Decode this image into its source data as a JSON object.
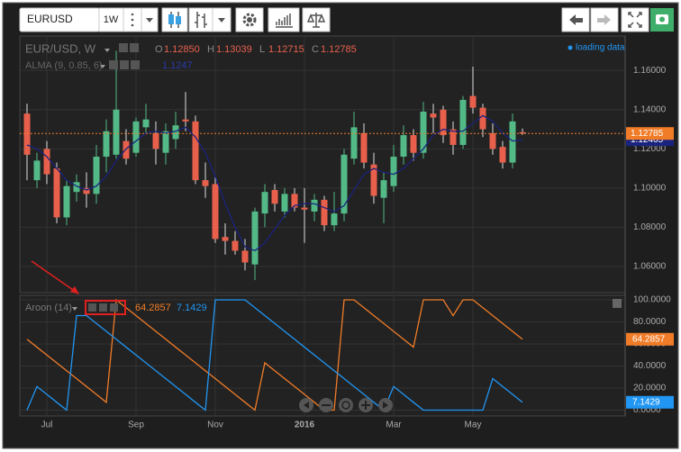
{
  "toolbar": {
    "symbol": "EURUSD",
    "interval": "1W"
  },
  "status": "loading data",
  "chart_data": [
    {
      "type": "candlestick",
      "title": "EUR/USD, W",
      "ohlc_legend": [
        {
          "key": "O",
          "value": "1.12850"
        },
        {
          "key": "H",
          "value": "1.13039"
        },
        {
          "key": "L",
          "value": "1.12715"
        },
        {
          "key": "C",
          "value": "1.12785"
        }
      ],
      "categories": [
        null,
        null,
        "Jul",
        null,
        null,
        null,
        null,
        null,
        null,
        null,
        null,
        "Sep",
        null,
        null,
        null,
        null,
        null,
        null,
        null,
        "Nov",
        null,
        null,
        null,
        null,
        null,
        null,
        null,
        null,
        "2016",
        null,
        null,
        null,
        null,
        null,
        null,
        null,
        null,
        "Mar",
        null,
        null,
        null,
        null,
        null,
        null,
        null,
        "May",
        null,
        null,
        null,
        null,
        null
      ],
      "up_color": "#53b987",
      "down_color": "#e8604c",
      "open": [
        1.138,
        1.104,
        1.12,
        1.11,
        1.085,
        1.098,
        1.1,
        1.097,
        1.116,
        1.117,
        1.124,
        1.118,
        1.131,
        1.128,
        1.118,
        1.125,
        1.135,
        1.134,
        1.104,
        1.102,
        1.075,
        1.073,
        1.068,
        1.061,
        1.087,
        1.099,
        1.088,
        1.097,
        1.09,
        1.088,
        1.094,
        1.081,
        1.087,
        1.115,
        1.128,
        1.112,
        1.095,
        1.101,
        1.116,
        1.127,
        1.118,
        1.138,
        1.14,
        1.13,
        1.122,
        1.147,
        1.141,
        1.128,
        1.121,
        1.113,
        1.1285
      ],
      "high": [
        1.143,
        1.118,
        1.124,
        1.113,
        1.104,
        1.107,
        1.108,
        1.122,
        1.135,
        1.17,
        1.13,
        1.136,
        1.143,
        1.134,
        1.133,
        1.139,
        1.149,
        1.137,
        1.113,
        1.106,
        1.082,
        1.078,
        1.074,
        1.09,
        1.102,
        1.102,
        1.1,
        1.1,
        1.1,
        1.097,
        1.096,
        1.098,
        1.12,
        1.139,
        1.133,
        1.118,
        1.108,
        1.122,
        1.132,
        1.13,
        1.144,
        1.143,
        1.142,
        1.134,
        1.147,
        1.162,
        1.143,
        1.133,
        1.124,
        1.138,
        1.13039
      ],
      "low": [
        1.104,
        1.1,
        1.102,
        1.082,
        1.081,
        1.093,
        1.09,
        1.092,
        1.108,
        1.115,
        1.112,
        1.116,
        1.128,
        1.112,
        1.112,
        1.12,
        1.129,
        1.102,
        1.095,
        1.072,
        1.066,
        1.066,
        1.058,
        1.053,
        1.08,
        1.088,
        1.085,
        1.088,
        1.072,
        1.083,
        1.078,
        1.078,
        1.083,
        1.112,
        1.11,
        1.092,
        1.082,
        1.098,
        1.112,
        1.114,
        1.115,
        1.128,
        1.123,
        1.117,
        1.12,
        1.138,
        1.126,
        1.117,
        1.11,
        1.11,
        1.12715
      ],
      "close": [
        1.117,
        1.114,
        1.107,
        1.085,
        1.101,
        1.103,
        1.097,
        1.116,
        1.129,
        1.14,
        1.115,
        1.134,
        1.135,
        1.12,
        1.129,
        1.132,
        1.134,
        1.104,
        1.101,
        1.074,
        1.073,
        1.068,
        1.062,
        1.088,
        1.098,
        1.092,
        1.097,
        1.09,
        1.089,
        1.094,
        1.081,
        1.087,
        1.117,
        1.131,
        1.113,
        1.096,
        1.104,
        1.116,
        1.127,
        1.118,
        1.139,
        1.136,
        1.127,
        1.122,
        1.145,
        1.141,
        1.13,
        1.12,
        1.113,
        1.134,
        1.12785
      ],
      "overlays": [
        {
          "name": "ALMA (9, 0.85, 6)",
          "color": "#1a237e",
          "value_label": "1.1247",
          "values": [
            1.122,
            1.12,
            1.116,
            1.11,
            1.104,
            1.101,
            1.099,
            1.101,
            1.106,
            1.114,
            1.12,
            1.124,
            1.128,
            1.129,
            1.128,
            1.129,
            1.131,
            1.126,
            1.118,
            1.106,
            1.092,
            1.08,
            1.07,
            1.068,
            1.072,
            1.079,
            1.086,
            1.091,
            1.092,
            1.092,
            1.09,
            1.088,
            1.091,
            1.099,
            1.107,
            1.11,
            1.108,
            1.107,
            1.11,
            1.115,
            1.12,
            1.127,
            1.13,
            1.129,
            1.129,
            1.133,
            1.137,
            1.134,
            1.128,
            1.124,
            1.12465
          ]
        }
      ],
      "ylim": [
        1.0466,
        1.1776
      ],
      "yticks": [
        {
          "value": 1.16,
          "label": "1.16000"
        },
        {
          "value": 1.14,
          "label": "1.14000"
        },
        {
          "value": 1.12,
          "label": "1.12000"
        },
        {
          "value": 1.1,
          "label": "1.10000"
        },
        {
          "value": 1.08,
          "label": "1.08000"
        },
        {
          "value": 1.06,
          "label": "1.06000"
        }
      ],
      "grid": true
    },
    {
      "type": "line",
      "title": "Aroon (14)",
      "series": [
        {
          "color": "#f07c28",
          "values": [
            64.3,
            57.1,
            50,
            42.9,
            35.7,
            28.6,
            21.4,
            14.3,
            7.1,
            100,
            92.9,
            85.7,
            78.6,
            71.4,
            64.3,
            57.1,
            50,
            42.9,
            35.7,
            28.6,
            21.4,
            14.3,
            7.1,
            0,
            42.9,
            35.7,
            28.6,
            21.4,
            14.3,
            7.1,
            0,
            0,
            100,
            100,
            92.9,
            85.7,
            78.6,
            71.4,
            64.3,
            57.1,
            100,
            100,
            100,
            85.7,
            100,
            100,
            92.9,
            85.7,
            78.6,
            71.4,
            64.2857
          ]
        },
        {
          "color": "#2196f3",
          "values": [
            0,
            21.4,
            14.3,
            7.1,
            0,
            85.7,
            85.7,
            78.6,
            71.4,
            64.3,
            57.1,
            50,
            42.9,
            35.7,
            28.6,
            21.4,
            14.3,
            7.1,
            0,
            100,
            100,
            100,
            100,
            92.9,
            85.7,
            78.6,
            71.4,
            64.3,
            57.1,
            50,
            42.9,
            35.7,
            28.6,
            21.4,
            14.3,
            7.1,
            0,
            21.4,
            14.3,
            7.1,
            0,
            0,
            0,
            0,
            0,
            0,
            0,
            28.6,
            21.4,
            14.3,
            7.1429
          ]
        }
      ],
      "ylim": [
        -5.3,
        104.1
      ],
      "yticks": [
        {
          "value": 100,
          "label": "100.0000"
        },
        {
          "value": 80,
          "label": "80.0000"
        },
        {
          "value": 60,
          "label": "60.0000"
        },
        {
          "value": 40,
          "label": "40.0000"
        },
        {
          "value": 20,
          "label": "20.0000"
        },
        {
          "value": 0,
          "label": "0.0000"
        }
      ],
      "grid": true
    }
  ]
}
